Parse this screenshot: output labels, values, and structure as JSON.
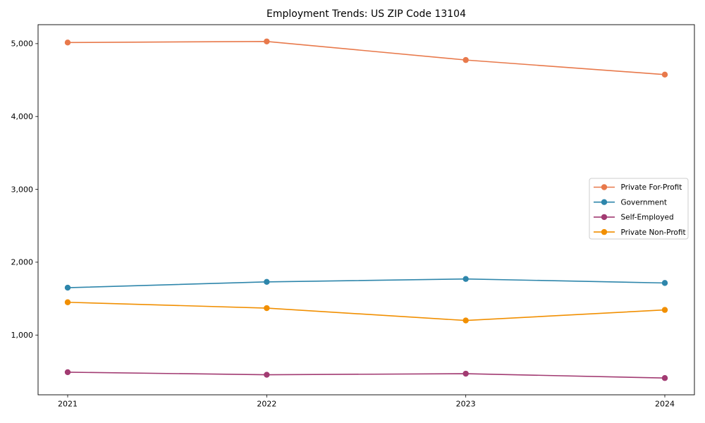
{
  "figure": {
    "title": "Employment Trends: US ZIP Code 13104"
  },
  "chart_data": {
    "type": "line",
    "title": "Employment Trends: US ZIP Code 13104",
    "xlabel": "",
    "ylabel": "",
    "categories": [
      "2021",
      "2022",
      "2023",
      "2024"
    ],
    "series": [
      {
        "name": "Private For-Profit",
        "color": "#E8794B",
        "values": [
          5015,
          5030,
          4775,
          4575
        ]
      },
      {
        "name": "Government",
        "color": "#2E86AB",
        "values": [
          1650,
          1730,
          1770,
          1715
        ]
      },
      {
        "name": "Self-Employed",
        "color": "#A23B72",
        "values": [
          490,
          455,
          470,
          410
        ]
      },
      {
        "name": "Private Non-Profit",
        "color": "#F18F01",
        "values": [
          1450,
          1370,
          1200,
          1345
        ]
      }
    ],
    "ylim": [
      180,
      5260
    ],
    "yticks": [
      1000,
      2000,
      3000,
      4000,
      5000
    ],
    "ytick_labels": [
      "1,000",
      "2,000",
      "3,000",
      "4,000",
      "5,000"
    ],
    "grid": false,
    "legend_position": "center-right",
    "marker": "circle",
    "spine_color": "#000000",
    "legend_border_color": "#cccccc",
    "background_color": "#ffffff"
  }
}
